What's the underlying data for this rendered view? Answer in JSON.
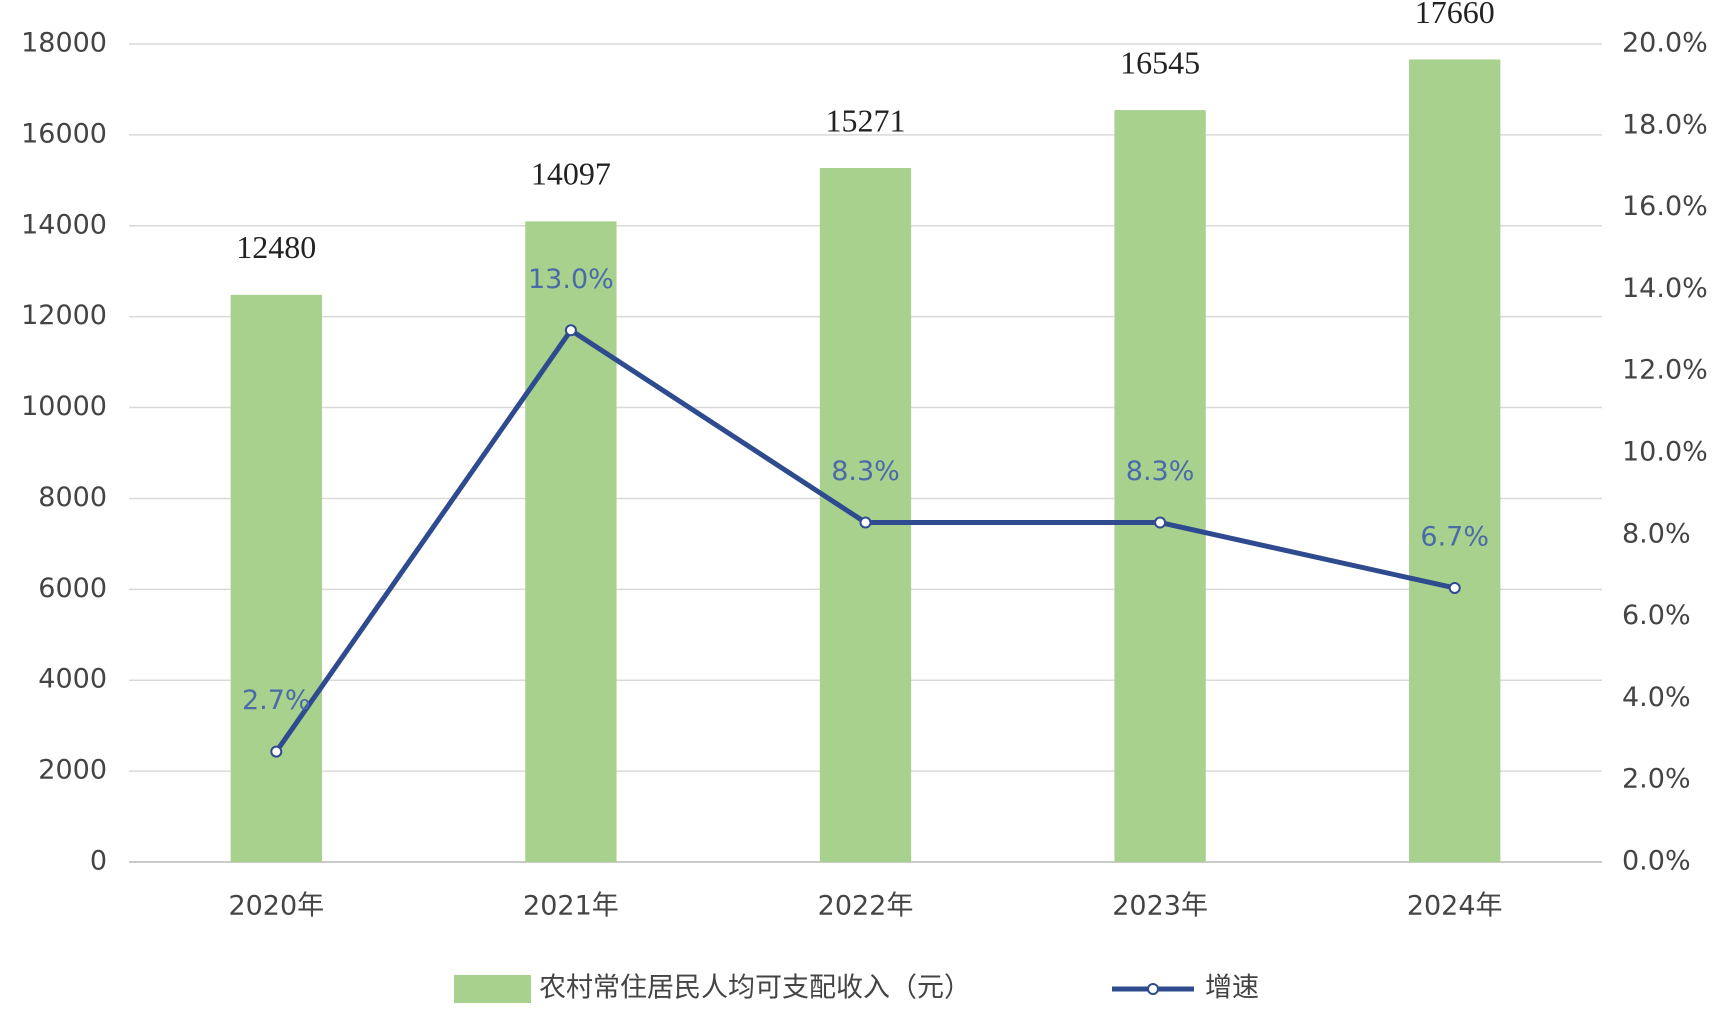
{
  "chart_data": {
    "type": "combo",
    "categories": [
      "2020年",
      "2021年",
      "2022年",
      "2023年",
      "2024年"
    ],
    "series": [
      {
        "name": "农村常住居民人均可支配收入（元）",
        "type": "bar",
        "color": "#a9d18e",
        "values": [
          12480,
          14097,
          15271,
          16545,
          17660
        ]
      },
      {
        "name": "增速",
        "type": "line",
        "axis": "y2",
        "color": "#2f4b8f",
        "values": [
          2.7,
          13.0,
          8.3,
          8.3,
          6.7
        ],
        "value_labels": [
          "2.7%",
          "13.0%",
          "8.3%",
          "8.3%",
          "6.7%"
        ]
      }
    ],
    "ylim": [
      0,
      18000
    ],
    "yticks": [
      0,
      2000,
      4000,
      6000,
      8000,
      10000,
      12000,
      14000,
      16000,
      18000
    ],
    "y2lim": [
      0,
      20
    ],
    "y2ticks": [
      {
        "value": 0,
        "label": "0.0%"
      },
      {
        "value": 2,
        "label": "2.0%"
      },
      {
        "value": 4,
        "label": "4.0%"
      },
      {
        "value": 6,
        "label": "6.0%"
      },
      {
        "value": 8,
        "label": "8.0%"
      },
      {
        "value": 10,
        "label": "10.0%"
      },
      {
        "value": 12,
        "label": "12.0%"
      },
      {
        "value": 14,
        "label": "14.0%"
      },
      {
        "value": 16,
        "label": "16.0%"
      },
      {
        "value": 18,
        "label": "18.0%"
      },
      {
        "value": 20,
        "label": "20.0%"
      }
    ],
    "grid": true,
    "legend": "bottom"
  }
}
